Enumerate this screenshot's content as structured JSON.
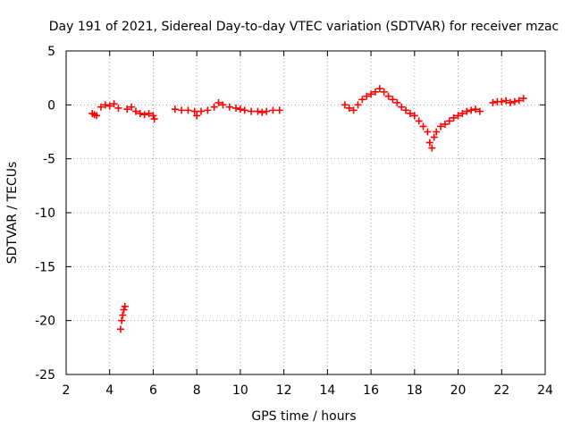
{
  "chart_data": {
    "type": "scatter",
    "title": "Day 191 of 2021, Sidereal Day-to-day VTEC variation (SDTVAR) for receiver mzac",
    "xlabel": "GPS time / hours",
    "ylabel": "SDTVAR / TECUs",
    "xlim": [
      2,
      24
    ],
    "ylim": [
      -25,
      5
    ],
    "xticks": [
      2,
      4,
      6,
      8,
      10,
      12,
      14,
      16,
      18,
      20,
      22,
      24
    ],
    "yticks": [
      5,
      0,
      -5,
      -10,
      -15,
      -20,
      -25
    ],
    "grid": true,
    "marker": "+",
    "series": [
      {
        "name": "SDTVAR",
        "color": "#ff0000",
        "x": [
          3.2,
          3.3,
          3.4,
          3.6,
          3.8,
          4.0,
          4.2,
          4.4,
          4.5,
          4.55,
          4.6,
          4.65,
          4.7,
          4.8,
          5.0,
          5.2,
          5.4,
          5.6,
          5.8,
          6.0,
          6.05,
          7.0,
          7.3,
          7.6,
          7.9,
          8.0,
          8.2,
          8.5,
          8.8,
          9.0,
          9.2,
          9.5,
          9.8,
          10.0,
          10.2,
          10.5,
          10.8,
          11.0,
          11.2,
          11.5,
          11.8,
          14.8,
          15.0,
          15.2,
          15.4,
          15.6,
          15.8,
          16.0,
          16.2,
          16.4,
          16.6,
          16.8,
          17.0,
          17.2,
          17.4,
          17.6,
          17.8,
          18.0,
          18.2,
          18.4,
          18.6,
          18.7,
          18.8,
          18.9,
          19.0,
          19.2,
          19.4,
          19.6,
          19.8,
          20.0,
          20.2,
          20.4,
          20.6,
          20.8,
          21.0,
          21.6,
          21.8,
          22.0,
          22.2,
          22.4,
          22.6,
          22.8,
          23.0
        ],
        "y": [
          -0.8,
          -0.9,
          -1.0,
          -0.2,
          0.0,
          -0.1,
          0.1,
          -0.3,
          -20.8,
          -20.0,
          -19.5,
          -19.0,
          -18.7,
          -0.4,
          -0.2,
          -0.6,
          -0.8,
          -0.9,
          -0.8,
          -1.0,
          -1.3,
          -0.4,
          -0.5,
          -0.5,
          -0.6,
          -1.0,
          -0.6,
          -0.5,
          -0.2,
          0.2,
          0.0,
          -0.2,
          -0.3,
          -0.4,
          -0.5,
          -0.6,
          -0.6,
          -0.7,
          -0.6,
          -0.5,
          -0.5,
          0.0,
          -0.3,
          -0.5,
          0.0,
          0.5,
          0.8,
          1.0,
          1.2,
          1.5,
          1.2,
          0.8,
          0.5,
          0.2,
          -0.2,
          -0.5,
          -0.8,
          -1.0,
          -1.5,
          -2.0,
          -2.5,
          -3.5,
          -4.0,
          -3.0,
          -2.5,
          -2.0,
          -1.8,
          -1.5,
          -1.2,
          -1.0,
          -0.8,
          -0.6,
          -0.5,
          -0.4,
          -0.6,
          0.2,
          0.3,
          0.3,
          0.4,
          0.2,
          0.3,
          0.4,
          0.6
        ]
      }
    ]
  }
}
